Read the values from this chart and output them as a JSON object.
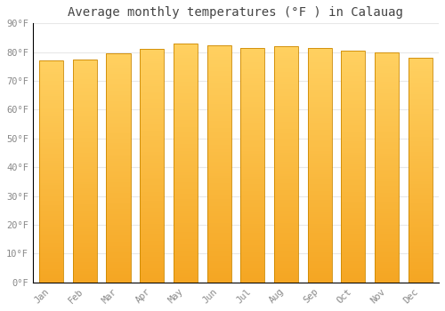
{
  "title": "Average monthly temperatures (°F ) in Calauag",
  "months": [
    "Jan",
    "Feb",
    "Mar",
    "Apr",
    "May",
    "Jun",
    "Jul",
    "Aug",
    "Sep",
    "Oct",
    "Nov",
    "Dec"
  ],
  "values": [
    77.0,
    77.5,
    79.5,
    81.0,
    83.0,
    82.5,
    81.5,
    82.0,
    81.5,
    80.5,
    80.0,
    78.0
  ],
  "bar_color": "#FFC107",
  "bar_edge_color": "#CC8800",
  "background_color": "#ffffff",
  "plot_bg_color": "#ffffff",
  "grid_color": "#e8e8e8",
  "ytick_labels": [
    "0°F",
    "10°F",
    "20°F",
    "30°F",
    "40°F",
    "50°F",
    "60°F",
    "70°F",
    "80°F",
    "90°F"
  ],
  "ytick_values": [
    0,
    10,
    20,
    30,
    40,
    50,
    60,
    70,
    80,
    90
  ],
  "ylim": [
    0,
    90
  ],
  "title_fontsize": 10,
  "tick_fontsize": 7.5,
  "tick_color": "#888888"
}
